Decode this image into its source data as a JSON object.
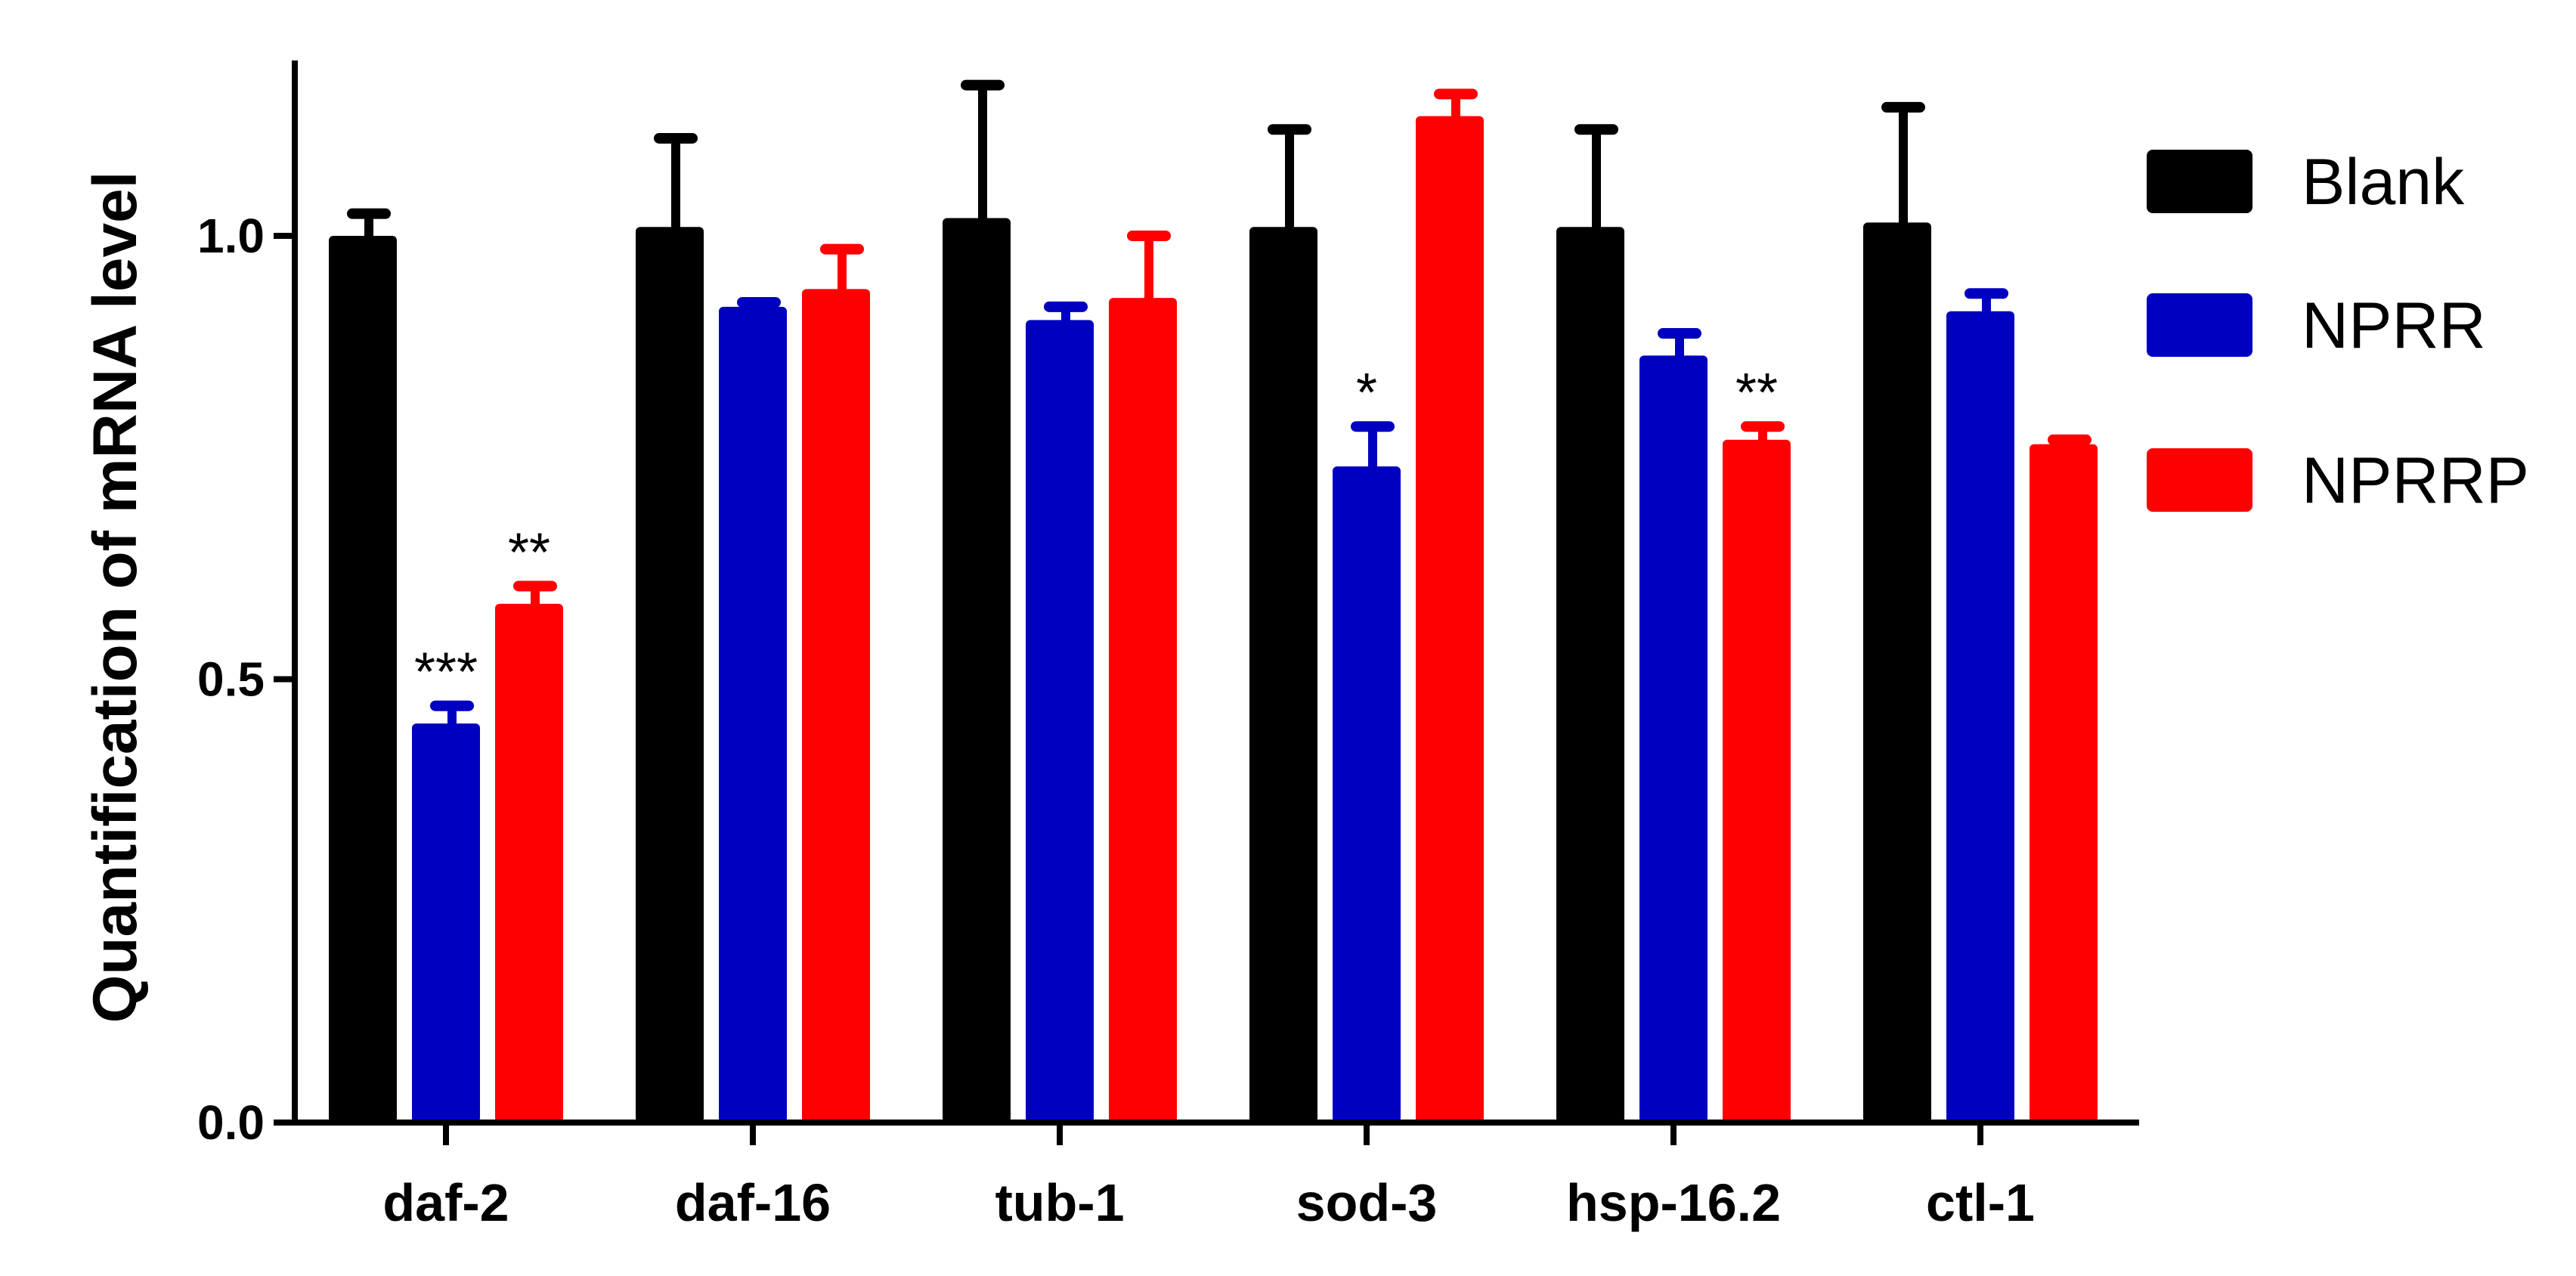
{
  "chart_data": {
    "type": "bar",
    "title": "",
    "xlabel": "",
    "ylabel": "Quantification of mRNA level",
    "ylim": [
      0,
      1.2
    ],
    "yticks": [
      "0.0",
      "0.5",
      "1.0"
    ],
    "grid": false,
    "legend": "right",
    "categories": [
      "daf-2",
      "daf-16",
      "tub-1",
      "sod-3",
      "hsp-16.2",
      "ctl-1"
    ],
    "series": [
      {
        "name": "Blank",
        "color": "#000000",
        "values": [
          1.0,
          1.01,
          1.02,
          1.01,
          1.01,
          1.015
        ],
        "errors": [
          0.025,
          0.1,
          0.15,
          0.11,
          0.11,
          0.13
        ],
        "significance": [
          "",
          "",
          "",
          "",
          "",
          ""
        ]
      },
      {
        "name": "NPRR",
        "color": "#0000C0",
        "values": [
          0.45,
          0.92,
          0.905,
          0.74,
          0.865,
          0.915
        ],
        "errors": [
          0.02,
          0.005,
          0.015,
          0.045,
          0.025,
          0.02
        ],
        "significance": [
          "***",
          "",
          "",
          "*",
          "",
          ""
        ]
      },
      {
        "name": "NPRRP",
        "color": "#FF0000",
        "values": [
          0.585,
          0.94,
          0.93,
          1.135,
          0.77,
          0.765
        ],
        "errors": [
          0.02,
          0.045,
          0.07,
          0.025,
          0.015,
          0.005
        ],
        "significance": [
          "**",
          "",
          "",
          "",
          "**",
          ""
        ]
      }
    ]
  }
}
